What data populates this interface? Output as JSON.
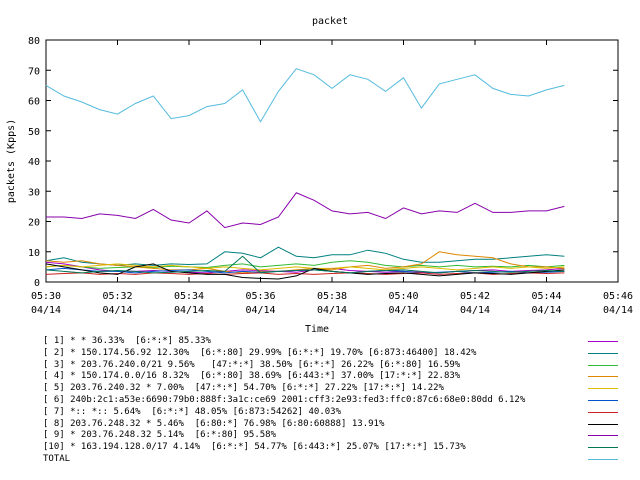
{
  "chart_data": {
    "type": "line",
    "title": "packet",
    "xlabel": "Time",
    "ylabel": "packets (Kpps)",
    "ylim": [
      0,
      80
    ],
    "y_ticks": [
      "0",
      "10",
      "20",
      "30",
      "40",
      "50",
      "60",
      "70",
      "80"
    ],
    "x_ticks": [
      {
        "time": "05:30",
        "date": "04/14"
      },
      {
        "time": "05:32",
        "date": "04/14"
      },
      {
        "time": "05:34",
        "date": "04/14"
      },
      {
        "time": "05:36",
        "date": "04/14"
      },
      {
        "time": "05:38",
        "date": "04/14"
      },
      {
        "time": "05:40",
        "date": "04/14"
      },
      {
        "time": "05:42",
        "date": "04/14"
      },
      {
        "time": "05:44",
        "date": "04/14"
      },
      {
        "time": "05:46",
        "date": "04/14"
      }
    ],
    "x": [
      "05:30",
      "05:30:30",
      "05:31",
      "05:31:30",
      "05:32",
      "05:32:30",
      "05:33",
      "05:33:30",
      "05:34",
      "05:34:30",
      "05:35",
      "05:35:30",
      "05:36",
      "05:36:30",
      "05:37",
      "05:37:30",
      "05:38",
      "05:38:30",
      "05:39",
      "05:39:30",
      "05:40",
      "05:40:30",
      "05:41",
      "05:41:30",
      "05:42",
      "05:42:30",
      "05:43",
      "05:43:30",
      "05:44",
      "05:44:30"
    ],
    "series": [
      {
        "name": "[ 1] * * 36.33%  [6:*:*] 85.33%",
        "color": "#aa00cc",
        "values": [
          6.5,
          6.0,
          5.0,
          4.0,
          3.5,
          3.5,
          3.8,
          3.5,
          3.2,
          3.0,
          3.5,
          4.0,
          3.8,
          3.5,
          3.2,
          4.0,
          4.5,
          3.8,
          3.5,
          3.2,
          3.5,
          3.2,
          3.0,
          3.5,
          3.8,
          4.0,
          3.5,
          3.8,
          4.0,
          4.5
        ]
      },
      {
        "name": "[ 2] * 150.174.56.92 12.30%  [6:*:80] 29.99% [6:*:*] 19.70% [6:873:46400] 18.42%",
        "color": "#008080",
        "values": [
          7.0,
          8.0,
          6.5,
          6.0,
          5.5,
          6.0,
          5.5,
          6.0,
          5.8,
          6.0,
          10.0,
          9.5,
          8.0,
          11.5,
          8.5,
          8.0,
          9.0,
          9.0,
          10.5,
          9.5,
          7.5,
          6.5,
          6.5,
          7.0,
          7.5,
          7.5,
          8.0,
          8.5,
          9.0,
          8.5
        ]
      },
      {
        "name": "[ 3] * 203.76.240.0/21 9.56%   [47:*:*] 38.50% [6:*:*] 26.22% [6:*:80] 16.59%",
        "color": "#33bb33",
        "values": [
          5.0,
          5.5,
          5.0,
          4.5,
          4.8,
          5.0,
          4.8,
          5.2,
          5.0,
          4.8,
          5.5,
          6.0,
          5.0,
          5.5,
          6.0,
          5.5,
          6.5,
          7.0,
          6.5,
          5.5,
          5.0,
          5.5,
          5.0,
          5.5,
          5.0,
          5.2,
          5.0,
          5.5,
          5.0,
          5.5
        ]
      },
      {
        "name": "[ 4] * 150.174.0.0/16 8.32%  [6:*:80] 38.69% [6:443:*] 37.00% [17:*:*] 22.83%",
        "color": "#dd8800",
        "values": [
          7.0,
          6.5,
          7.0,
          6.0,
          5.5,
          5.0,
          4.5,
          4.0,
          4.0,
          4.5,
          3.5,
          3.0,
          3.5,
          3.5,
          4.0,
          4.5,
          4.0,
          5.0,
          5.5,
          4.5,
          5.0,
          6.0,
          10.0,
          9.0,
          8.5,
          8.0,
          6.0,
          5.0,
          5.0,
          4.5
        ]
      },
      {
        "name": "[ 5] 203.76.240.32 * 7.00%  [47:*:*] 54.70% [6:*:*] 27.22% [17:*:*] 14.22%",
        "color": "#ddbb00",
        "values": [
          5.0,
          5.5,
          5.0,
          5.5,
          6.0,
          5.5,
          5.0,
          5.5,
          5.0,
          4.5,
          5.0,
          4.5,
          4.0,
          4.5,
          5.0,
          4.5,
          4.5,
          5.0,
          4.5,
          4.0,
          4.5,
          5.0,
          4.5,
          4.0,
          4.5,
          5.0,
          4.5,
          5.0,
          4.5,
          5.0
        ]
      },
      {
        "name": "[ 6] 240b:2c1:a53e:6690:79b0:888f:3a1c:ce69 2001:cff3:2e93:fed3:ffc0:87c6:68e0:80dd 6.12%",
        "color": "#0055cc",
        "values": [
          4.0,
          4.5,
          4.0,
          3.5,
          3.5,
          3.0,
          3.5,
          3.8,
          4.0,
          3.5,
          3.0,
          3.5,
          3.2,
          3.5,
          3.8,
          4.0,
          3.5,
          3.0,
          3.5,
          3.8,
          3.5,
          3.0,
          3.2,
          3.5,
          3.0,
          3.2,
          3.5,
          3.0,
          3.2,
          3.5
        ]
      },
      {
        "name": "[ 7] *:: *:: 5.64%  [6:*:*] 48.05% [6:873:54262] 40.03%",
        "color": "#cc2222",
        "values": [
          2.5,
          2.8,
          3.0,
          2.5,
          2.8,
          2.5,
          3.0,
          2.8,
          2.5,
          2.8,
          2.5,
          2.8,
          3.0,
          2.5,
          2.8,
          2.5,
          2.8,
          3.0,
          2.8,
          2.5,
          2.8,
          3.0,
          2.5,
          2.8,
          3.0,
          2.5,
          2.8,
          3.0,
          2.8,
          3.0
        ]
      },
      {
        "name": "[ 8] 203.76.248.32 * 5.46%  [6:80:*] 76.98% [6:80:60888] 13.91%",
        "color": "#000000",
        "values": [
          6.0,
          5.0,
          4.0,
          3.0,
          2.5,
          5.0,
          6.0,
          3.5,
          3.0,
          2.5,
          2.5,
          1.5,
          1.2,
          1.0,
          2.0,
          4.5,
          3.5,
          3.0,
          2.5,
          2.8,
          3.0,
          2.5,
          2.0,
          2.5,
          3.0,
          2.8,
          2.5,
          3.0,
          3.5,
          4.0
        ]
      },
      {
        "name": "[ 9] * 203.76.248.32 5.14%  [6:*:80] 95.58%",
        "color": "#8800aa",
        "values": [
          21.5,
          21.5,
          21.0,
          22.5,
          22.0,
          21.0,
          24.0,
          20.5,
          19.5,
          23.5,
          18.0,
          19.5,
          19.0,
          21.5,
          29.5,
          27.0,
          23.5,
          22.5,
          23.0,
          21.0,
          24.5,
          22.5,
          23.5,
          23.0,
          26.0,
          23.0,
          23.0,
          23.5,
          23.5,
          25.0
        ]
      },
      {
        "name": "[10] * 163.194.128.0/17 4.14%  [6:*:*] 54.77% [6:443:*] 25.07% [17:*:*] 15.73%",
        "color": "#007755",
        "values": [
          4.0,
          3.5,
          3.0,
          3.5,
          3.8,
          3.5,
          3.0,
          3.2,
          3.5,
          3.8,
          3.5,
          8.5,
          3.0,
          3.5,
          3.8,
          4.0,
          3.5,
          3.0,
          3.5,
          3.8,
          4.0,
          3.5,
          3.0,
          3.5,
          3.8,
          3.5,
          3.2,
          3.5,
          3.8,
          3.5
        ]
      },
      {
        "name": "TOTAL",
        "color": "#55bbdd",
        "values": [
          65.0,
          61.5,
          59.5,
          57.0,
          55.5,
          59.0,
          61.5,
          54.0,
          55.0,
          58.0,
          59.0,
          63.5,
          53.0,
          63.0,
          70.5,
          68.5,
          64.0,
          68.5,
          67.0,
          63.0,
          67.5,
          57.5,
          65.5,
          67.0,
          68.5,
          64.0,
          62.0,
          61.5,
          63.5,
          65.0
        ]
      }
    ]
  }
}
